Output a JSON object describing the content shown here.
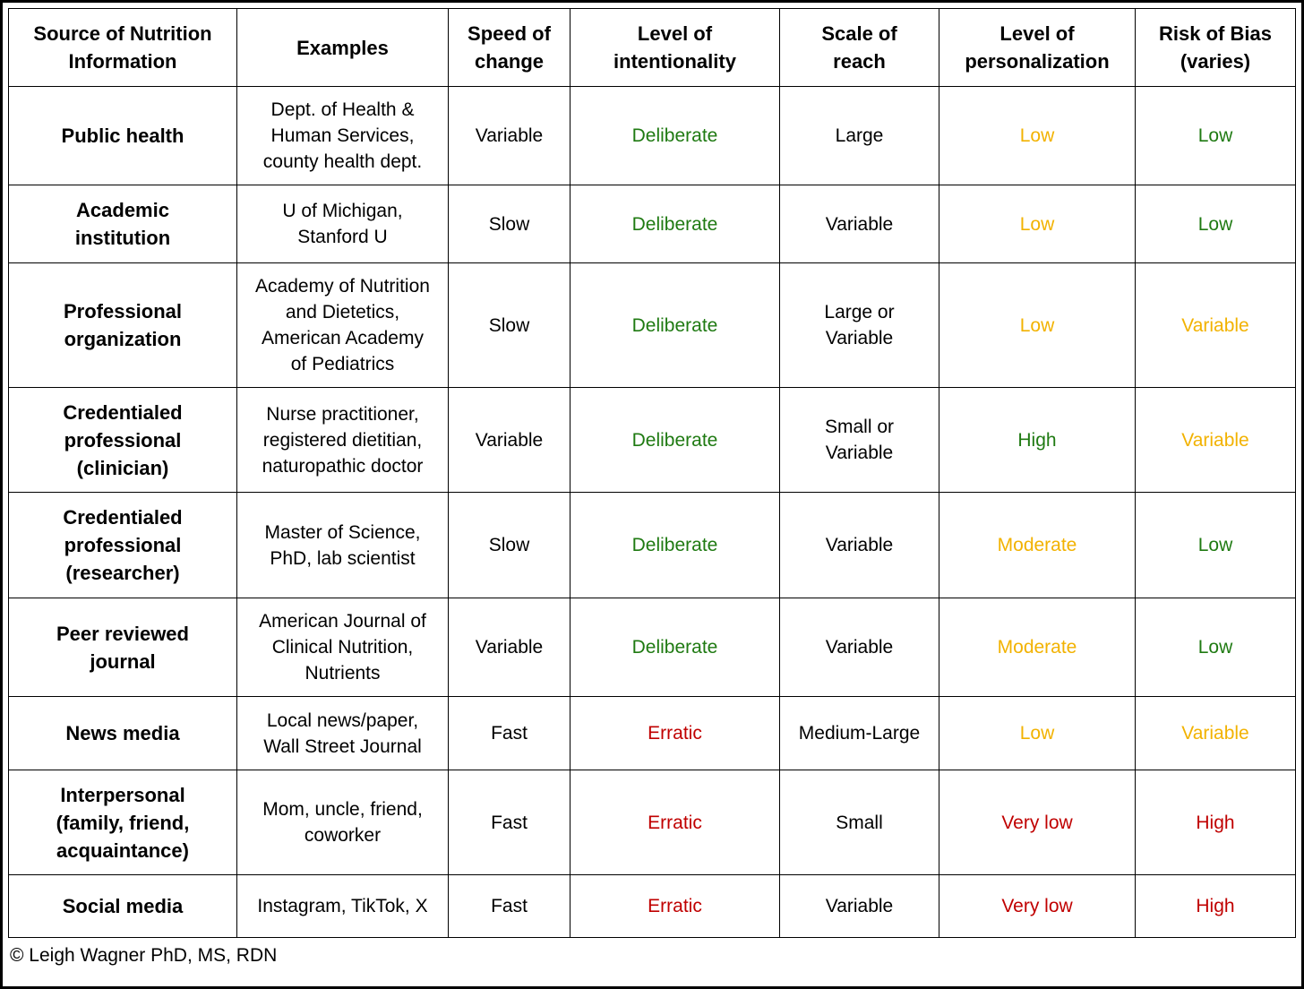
{
  "headers": [
    [
      "Source of Nutrition",
      "Information"
    ],
    [
      "Examples"
    ],
    [
      "Speed of",
      "change"
    ],
    [
      "Level of",
      "intentionality"
    ],
    [
      "Scale of",
      "reach"
    ],
    [
      "Level of",
      "personalization"
    ],
    [
      "Risk of Bias",
      "(varies)"
    ]
  ],
  "rows": [
    {
      "source": [
        "Public health"
      ],
      "examples": [
        "Dept. of Health &",
        "Human Services,",
        "county health dept."
      ],
      "speed": "Variable",
      "intentionality": "Deliberate",
      "reach": [
        "Large"
      ],
      "personalization": "Low",
      "bias": "Low"
    },
    {
      "source": [
        "Academic",
        "institution"
      ],
      "examples": [
        "U of Michigan,",
        "Stanford U"
      ],
      "speed": "Slow",
      "intentionality": "Deliberate",
      "reach": [
        "Variable"
      ],
      "personalization": "Low",
      "bias": "Low"
    },
    {
      "source": [
        "Professional",
        "organization"
      ],
      "examples": [
        "Academy of Nutrition",
        "and Dietetics,",
        "American Academy",
        "of Pediatrics"
      ],
      "speed": "Slow",
      "intentionality": "Deliberate",
      "reach": [
        "Large or",
        "Variable"
      ],
      "personalization": "Low",
      "bias": "Variable"
    },
    {
      "source": [
        "Credentialed",
        "professional",
        "(clinician)"
      ],
      "examples": [
        "Nurse practitioner,",
        "registered dietitian,",
        "naturopathic doctor"
      ],
      "speed": "Variable",
      "intentionality": "Deliberate",
      "reach": [
        "Small or",
        "Variable"
      ],
      "personalization": "High",
      "bias": "Variable"
    },
    {
      "source": [
        "Credentialed",
        "professional",
        "(researcher)"
      ],
      "examples": [
        "Master of Science,",
        "PhD, lab scientist"
      ],
      "speed": "Slow",
      "intentionality": "Deliberate",
      "reach": [
        "Variable"
      ],
      "personalization": "Moderate",
      "bias": "Low"
    },
    {
      "source": [
        "Peer reviewed",
        "journal"
      ],
      "examples": [
        "American Journal of",
        "Clinical Nutrition,",
        "Nutrients"
      ],
      "speed": "Variable",
      "intentionality": "Deliberate",
      "reach": [
        "Variable"
      ],
      "personalization": "Moderate",
      "bias": "Low"
    },
    {
      "source": [
        "News media"
      ],
      "examples": [
        "Local news/paper,",
        "Wall Street Journal"
      ],
      "speed": "Fast",
      "intentionality": "Erratic",
      "reach": [
        "Medium-Large"
      ],
      "personalization": "Low",
      "bias": "Variable"
    },
    {
      "source": [
        "Interpersonal",
        "(family, friend,",
        "acquaintance)"
      ],
      "examples": [
        "Mom, uncle, friend,",
        "coworker"
      ],
      "speed": "Fast",
      "intentionality": "Erratic",
      "reach": [
        "Small"
      ],
      "personalization": "Very low",
      "bias": "High"
    },
    {
      "source": [
        "Social media"
      ],
      "examples": [
        "Instagram, TikTok, X"
      ],
      "speed": "Fast",
      "intentionality": "Erratic",
      "reach": [
        "Variable"
      ],
      "personalization": "Very low",
      "bias": "High"
    }
  ],
  "colors": {
    "Deliberate": "#1f7a12",
    "Erratic": "#c00000",
    "Low_personalization": "#f2b200",
    "Moderate": "#f2b200",
    "High_personalization": "#1f7a12",
    "Very low": "#c00000",
    "Low_bias": "#1f7a12",
    "Variable_bias": "#f2b200",
    "High_bias": "#c00000"
  },
  "footer": {
    "copyright": "© Leigh Wagner PhD, MS, RDN"
  }
}
